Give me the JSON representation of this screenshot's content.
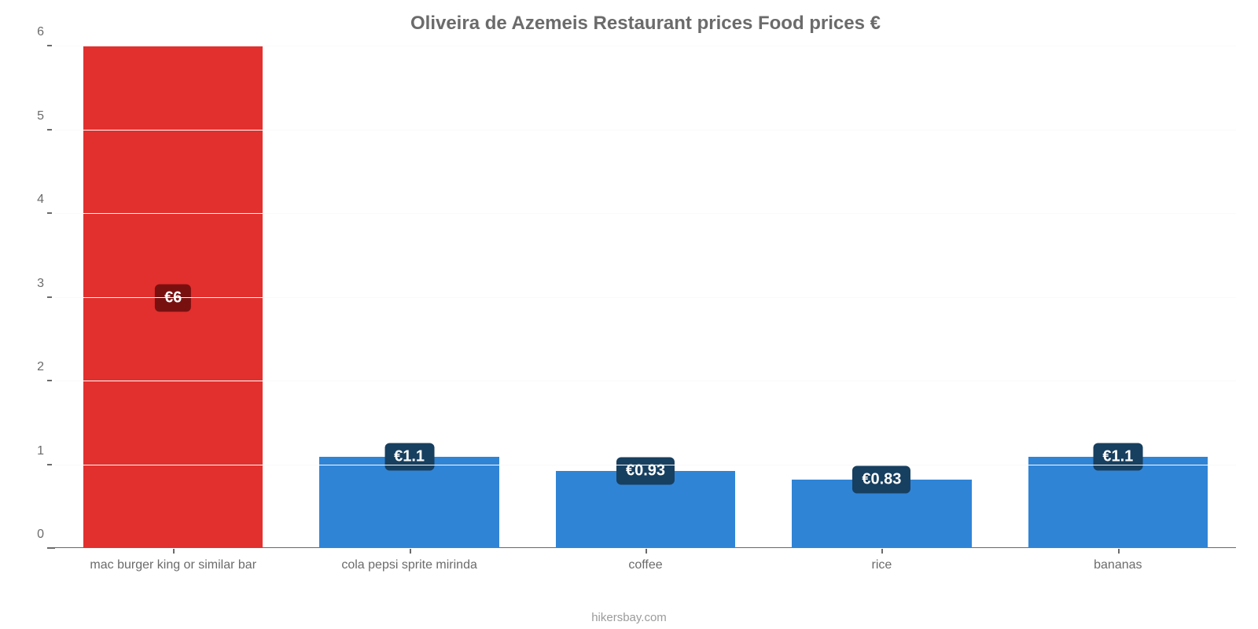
{
  "chart": {
    "type": "bar",
    "title": "Oliveira de Azemeis Restaurant prices Food prices €",
    "title_fontsize": 24,
    "title_color": "#6b6b6b",
    "background_color": "#ffffff",
    "grid_color": "#fafafa",
    "axis_color": "#6b6b6b",
    "label_color": "#6b6b6b",
    "attribution": "hikersbay.com",
    "ylim": [
      0,
      6
    ],
    "yticks": [
      0,
      1,
      2,
      3,
      4,
      5,
      6
    ],
    "bar_width_pct": 76,
    "categories": [
      "mac burger king or similar bar",
      "cola pepsi sprite mirinda",
      "coffee",
      "rice",
      "bananas"
    ],
    "values": [
      6,
      1.1,
      0.93,
      0.83,
      1.1
    ],
    "value_labels": [
      "€6",
      "€1.1",
      "€0.93",
      "€0.83",
      "€1.1"
    ],
    "bar_colors": [
      "#e2302e",
      "#3084d6",
      "#3084d6",
      "#3084d6",
      "#3084d6"
    ],
    "label_bg_colors": [
      "#791010",
      "#173f5f",
      "#173f5f",
      "#173f5f",
      "#173f5f"
    ],
    "label_outside": [
      false,
      true,
      true,
      true,
      true
    ],
    "label_fontsize": 20,
    "xaxis_fontsize": 16,
    "yaxis_fontsize": 16
  }
}
